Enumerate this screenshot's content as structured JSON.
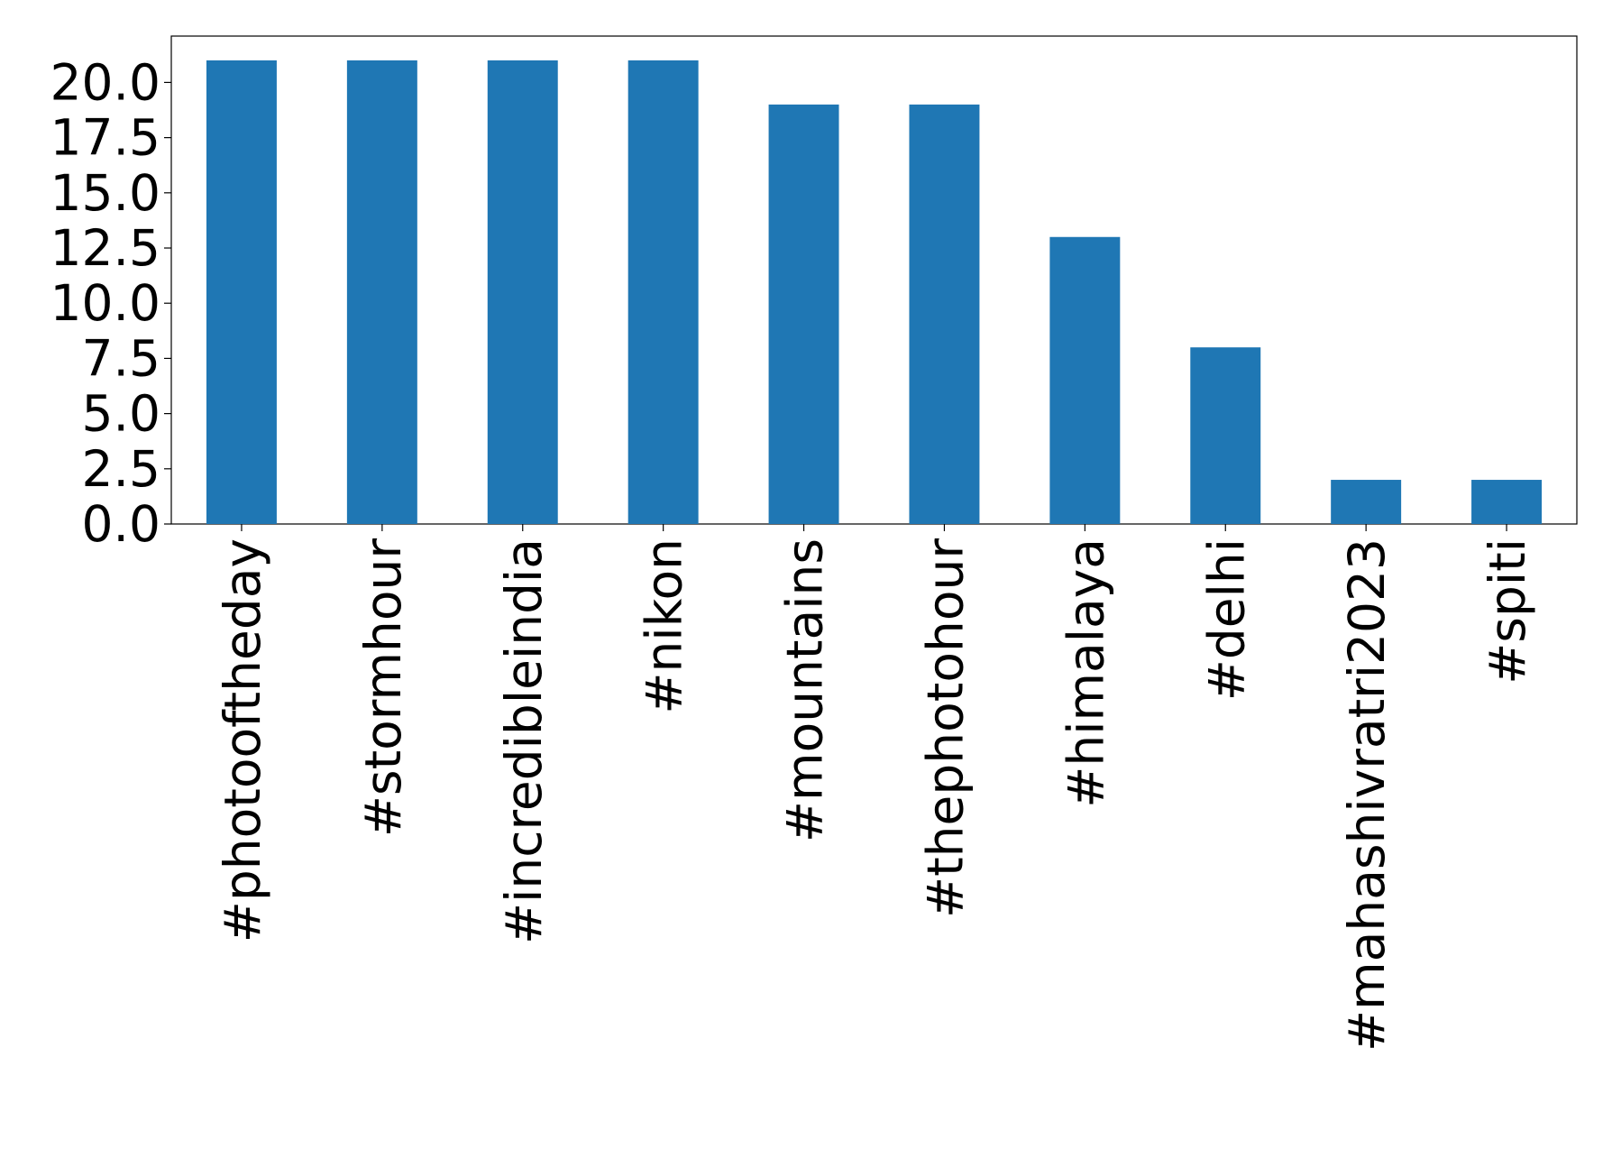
{
  "chart_data": {
    "type": "bar",
    "categories": [
      "#photooftheday",
      "#stormhour",
      "#incredibleindia",
      "#nikon",
      "#mountains",
      "#thephotohour",
      "#himalaya",
      "#delhi",
      "#mahashivratri2023",
      "#spiti"
    ],
    "values": [
      21,
      21,
      21,
      21,
      19,
      19,
      13,
      8,
      2,
      2
    ],
    "color": "#1f77b4",
    "ylim": [
      0,
      22.1
    ],
    "yticks": [
      {
        "value": 0,
        "label": "0.0"
      },
      {
        "value": 2.5,
        "label": "2.5"
      },
      {
        "value": 5,
        "label": "5.0"
      },
      {
        "value": 7.5,
        "label": "7.5"
      },
      {
        "value": 10,
        "label": "10.0"
      },
      {
        "value": 12.5,
        "label": "12.5"
      },
      {
        "value": 15,
        "label": "15.0"
      },
      {
        "value": 17.5,
        "label": "17.5"
      },
      {
        "value": 20,
        "label": "20.0"
      }
    ],
    "grid": false
  }
}
